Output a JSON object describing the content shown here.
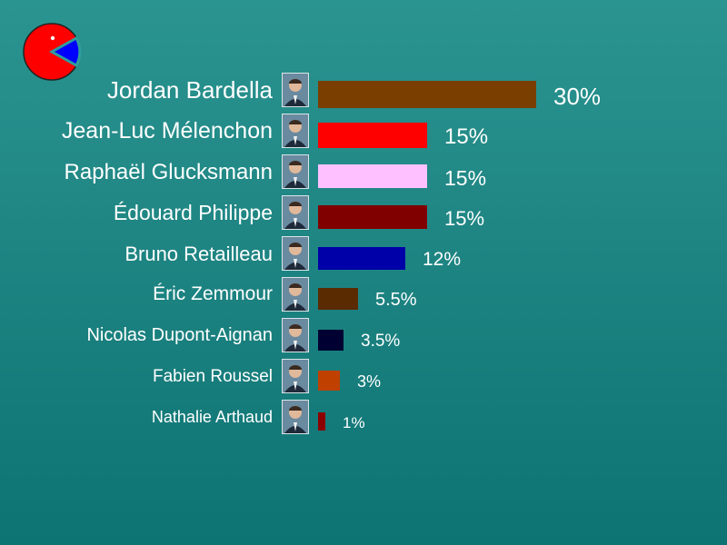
{
  "logo": {
    "icon": "pie-logo-icon",
    "fill": "#ff0000",
    "slice": "#0000ff"
  },
  "chart_data": {
    "type": "bar",
    "orientation": "horizontal",
    "unit": "%",
    "categories": [
      "Jordan Bardella",
      "Jean-Luc Mélenchon",
      "Raphaël Glucksmann",
      "Édouard Philippe",
      "Bruno Retailleau",
      "Éric Zemmour",
      "Nicolas Dupont-Aignan",
      "Fabien Roussel",
      "Nathalie Arthaud"
    ],
    "values": [
      30,
      15,
      15,
      15,
      12,
      5.5,
      3.5,
      3,
      1
    ],
    "value_labels": [
      "30%",
      "15%",
      "15%",
      "15%",
      "12%",
      "5.5%",
      "3.5%",
      "3%",
      "1%"
    ],
    "colors": [
      "#7a3e00",
      "#ff0000",
      "#ffc0ff",
      "#800000",
      "#0000a8",
      "#5a2a00",
      "#000033",
      "#c04000",
      "#8b0000"
    ],
    "photos": [
      "portrait-icon",
      "portrait-icon",
      "portrait-icon",
      "portrait-icon",
      "portrait-icon",
      "portrait-icon",
      "portrait-icon",
      "portrait-icon",
      "portrait-icon"
    ],
    "xlim": [
      0,
      30
    ],
    "grid": false,
    "legend": "none"
  }
}
